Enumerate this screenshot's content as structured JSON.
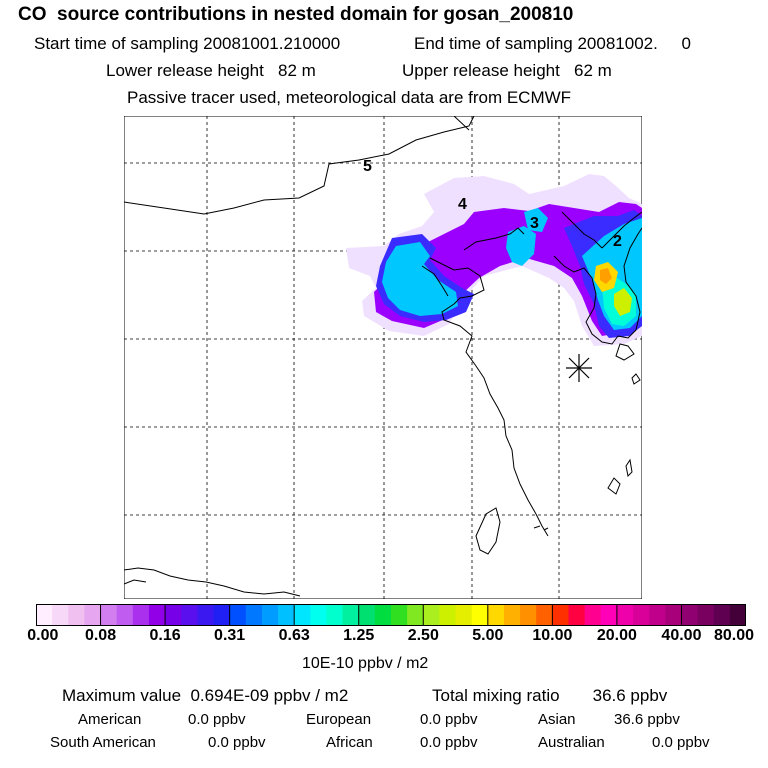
{
  "header": {
    "title": "CO  source contributions in nested domain for gosan_200810",
    "start_label": "Start time of sampling 20081001.210000",
    "end_label": "End time of sampling 20081002.     0",
    "lower_height": "Lower release height   82 m",
    "upper_height": "Upper release height   62 m",
    "tracer_note": "Passive tracer used, meteorological data are from ECMWF"
  },
  "map": {
    "day_markers": [
      "5",
      "4",
      "3",
      "2"
    ],
    "receptor": "Gosan station marker",
    "plume_colors": [
      "#f0e0ff",
      "#9b00ff",
      "#3a2bff",
      "#00c8ff",
      "#00ffd8",
      "#ffd800",
      "#ffa000"
    ]
  },
  "colorbar": {
    "ticks": [
      "0.00",
      "0.08",
      "0.16",
      "0.31",
      "0.63",
      "1.25",
      "2.50",
      "5.00",
      "10.00",
      "20.00",
      "40.00",
      "80.00"
    ],
    "colors": [
      "#ffeeff",
      "#f8d8f8",
      "#f0c0f0",
      "#e6a6f0",
      "#d27ef0",
      "#c05cf0",
      "#aa30ee",
      "#9200e8",
      "#7800e8",
      "#5a10ee",
      "#3c18f0",
      "#2020f4",
      "#0050ff",
      "#0078ff",
      "#009cff",
      "#00c0ff",
      "#00e6ff",
      "#00ffee",
      "#00ffcc",
      "#00f0a0",
      "#00e070",
      "#00dd40",
      "#30e020",
      "#80e820",
      "#aaee20",
      "#cdf000",
      "#e6ee00",
      "#ffff00",
      "#ffd800",
      "#ffb000",
      "#ff9000",
      "#ff6000",
      "#ff3000",
      "#ff0040",
      "#ff0090",
      "#ff00b8",
      "#ee00aa",
      "#d80098",
      "#c0008a",
      "#a8007a",
      "#900070",
      "#7a0060",
      "#600050",
      "#440038"
    ],
    "unit": "10E-10 ppbv / m2"
  },
  "summary": {
    "max_value": "Maximum value  0.694E-09 ppbv / m2",
    "total_mixing": "Total mixing ratio       36.6 ppbv",
    "american": "American",
    "american_val": "0.0 ppbv",
    "european": "European",
    "european_val": "0.0 ppbv",
    "asian": "Asian",
    "asian_val": "36.6 ppbv",
    "south_american": "South American",
    "south_american_val": "0.0 ppbv",
    "african": "African",
    "african_val": "0.0 ppbv",
    "australian": "Australian",
    "australian_val": "0.0 ppbv"
  }
}
